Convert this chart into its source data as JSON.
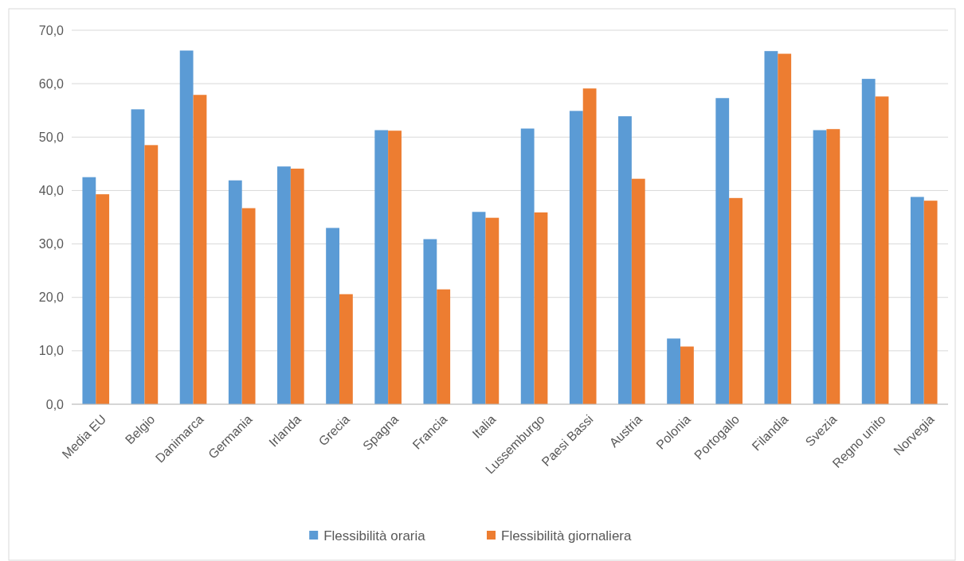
{
  "chart_data": {
    "type": "bar",
    "categories": [
      "Media EU",
      "Belgio",
      "Danimarca",
      "Germania",
      "Irlanda",
      "Grecia",
      "Spagna",
      "Francia",
      "Italia",
      "Lussemburgo",
      "Paesi Bassi",
      "Austria",
      "Polonia",
      "Portogallo",
      "Filandia",
      "Svezia",
      "Regno unito",
      "Norvegia"
    ],
    "series": [
      {
        "name": "Flessibilità oraria",
        "color": "#5b9bd5",
        "values": [
          42.5,
          55.2,
          66.2,
          41.9,
          44.5,
          33.0,
          51.3,
          30.9,
          36.0,
          51.6,
          54.9,
          53.9,
          12.3,
          57.3,
          66.1,
          51.3,
          60.9,
          38.8
        ]
      },
      {
        "name": "Flessibilità giornaliera",
        "color": "#ed7d31",
        "values": [
          39.3,
          48.5,
          57.9,
          36.7,
          44.1,
          20.6,
          51.2,
          21.5,
          34.9,
          35.9,
          59.1,
          42.2,
          10.8,
          38.6,
          65.6,
          51.5,
          57.6,
          38.1
        ]
      }
    ],
    "ylim": [
      0,
      70
    ],
    "yticks": [
      {
        "value": 0,
        "label": "0,0"
      },
      {
        "value": 10,
        "label": "10,0"
      },
      {
        "value": 20,
        "label": "20,0"
      },
      {
        "value": 30,
        "label": "30,0"
      },
      {
        "value": 40,
        "label": "40,0"
      },
      {
        "value": 50,
        "label": "50,0"
      },
      {
        "value": 60,
        "label": "60,0"
      },
      {
        "value": 70,
        "label": "70,0"
      }
    ],
    "grid": "y",
    "legend": "bottom"
  }
}
